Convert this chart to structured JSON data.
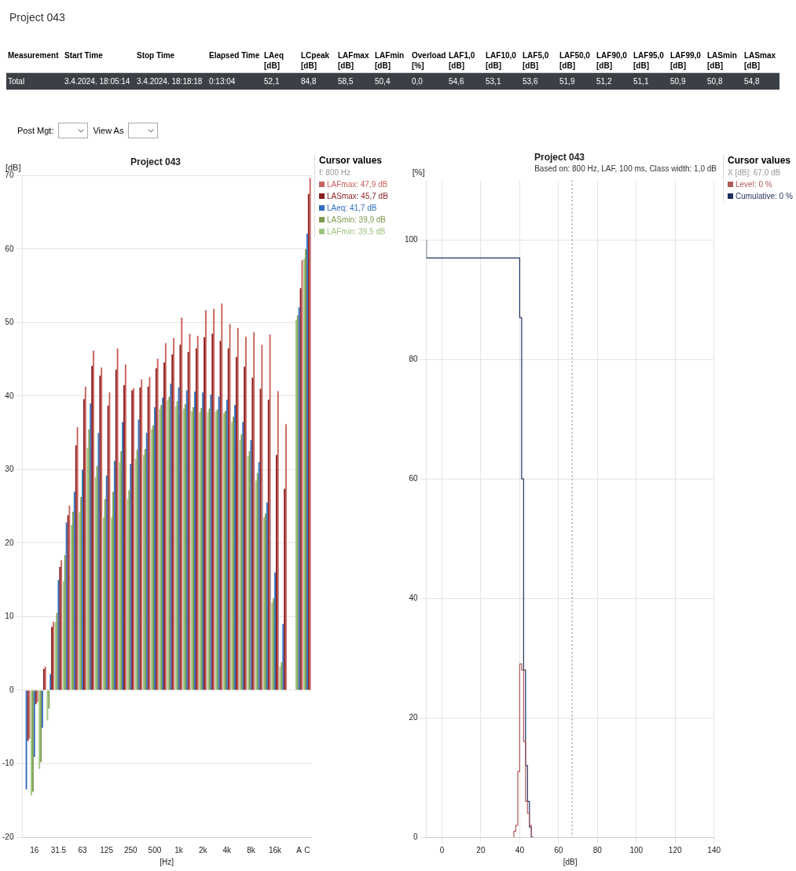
{
  "chart_data": [
    {
      "type": "other",
      "title": "Project 043",
      "annotations": [
        "Measurement",
        "Start Time",
        "Stop Time",
        "Elapsed Time",
        "LAeq [dB]",
        "LCpeak [dB]",
        "LAFmax [dB]",
        "LAFmin [dB]",
        "Overload [%]",
        "LAF1,0 [dB]",
        "LAF10,0 [dB]",
        "LAF5,0 [dB]",
        "LAF50,0 [dB]",
        "LAF90,0 [dB]",
        "LAF95,0 [dB]",
        "LAF99,0 [dB]",
        "LASmin [dB]",
        "LASmax [dB]",
        "Total",
        "3.4.2024. 18:05:14",
        "3.4.2024. 18:18:18",
        "0:13:04",
        "52,1",
        "84,8",
        "58,5",
        "50,4",
        "0,0",
        "54,6",
        "53,1",
        "53,6",
        "51,9",
        "51,2",
        "51,1",
        "50,9",
        "50,8",
        "54,8",
        "Post Mgt:",
        "View As"
      ]
    },
    {
      "type": "bar",
      "title": "Project 043",
      "xlabel": "[Hz]",
      "ylabel": "[dB]",
      "legend_title": "Cursor values",
      "annotations": [
        "f: 800 Hz"
      ],
      "categories": [
        null,
        "16",
        null,
        null,
        "31.5",
        null,
        null,
        "63",
        null,
        null,
        "125",
        null,
        null,
        "250",
        null,
        null,
        "500",
        null,
        null,
        "1k",
        null,
        null,
        "2k",
        null,
        null,
        "4k",
        null,
        null,
        "8k",
        null,
        null,
        "16k",
        null,
        null,
        "A",
        "C"
      ],
      "series": [
        {
          "name": "LAFmax: 47,9 dB",
          "color": "#c8615c",
          "values": [
            -6.6,
            -1.6,
            3.2,
            9.3,
            17.7,
            25.1,
            35.8,
            41.3,
            46.2,
            43.9,
            40.5,
            46.5,
            44.3,
            41.1,
            42.3,
            42.6,
            45.1,
            47.2,
            47.9,
            50.7,
            48.5,
            48.2,
            51.7,
            51.9,
            52.6,
            49.8,
            49.3,
            48.1,
            48.7,
            47.0,
            48.4,
            40.7,
            36.2,
            null,
            58.5,
            69.7
          ]
        },
        {
          "name": "LASmax: 45,7 dB",
          "color": "#8b1e1e",
          "values": [
            -6.9,
            -1.9,
            2.9,
            8.6,
            16.8,
            23.8,
            33.3,
            39.6,
            44.1,
            42.8,
            38.7,
            43.6,
            41.5,
            40.8,
            41.2,
            41.3,
            43.8,
            44.6,
            45.7,
            47.0,
            46.0,
            46.5,
            48.0,
            48.5,
            47.5,
            46.5,
            45.3,
            44.0,
            42.5,
            41.0,
            39.5,
            32.0,
            27.4,
            null,
            54.7,
            67.5
          ]
        },
        {
          "name": "LAeq: 41,7 dB",
          "color": "#2f6fbf",
          "values": [
            -13.5,
            -9.1,
            -5.1,
            2.2,
            15.0,
            22.8,
            27.0,
            30.0,
            39.0,
            35.0,
            29.2,
            31.2,
            36.5,
            30.8,
            36.8,
            35.0,
            38.5,
            39.8,
            41.7,
            41.2,
            40.8,
            40.6,
            40.5,
            40.2,
            39.9,
            39.5,
            38.8,
            36.5,
            34.0,
            31.0,
            25.5,
            16.0,
            9.0,
            null,
            52.1,
            62.1
          ]
        },
        {
          "name": "LASmin: 39,9 dB",
          "color": "#7d9a4f",
          "values": [
            null,
            -13.8,
            -9.8,
            -2.5,
            10.5,
            18.4,
            24.3,
            26.3,
            35.5,
            30.5,
            26.0,
            27.0,
            32.5,
            27.2,
            32.7,
            32.8,
            36.0,
            38.8,
            39.9,
            39.3,
            38.9,
            38.5,
            38.4,
            38.3,
            38.2,
            38.0,
            37.2,
            34.8,
            32.5,
            29.5,
            24.0,
            12.5,
            3.8,
            null,
            51.0,
            60.0
          ]
        },
        {
          "name": "LAFmin: 39,5 dB",
          "color": "#9ec47e",
          "values": [
            null,
            -14.3,
            -10.7,
            -4.1,
            9.3,
            14.8,
            22.5,
            24.2,
            33.0,
            29.0,
            23.5,
            23.5,
            31.0,
            26.0,
            31.5,
            32.0,
            35.5,
            38.2,
            39.5,
            38.6,
            38.3,
            38.0,
            37.8,
            37.8,
            37.9,
            37.7,
            36.5,
            34.0,
            31.8,
            28.5,
            23.5,
            11.9,
            3.2,
            null,
            50.4,
            58.7
          ]
        }
      ],
      "ylim": [
        -20,
        70
      ],
      "yticks": [
        -20,
        -10,
        0,
        10,
        20,
        30,
        40,
        50,
        60,
        70
      ],
      "grid": "y",
      "legend": "right"
    },
    {
      "type": "line",
      "title": "Project 043",
      "subtitle": "Based on: 800 Hz, LAF, 100 ms, Class width: 1,0 dB",
      "xlabel": "[dB]",
      "ylabel": "[%]",
      "legend_title": "Cursor values",
      "annotations": [
        "X [dB]: 67,0 dB"
      ],
      "series": [
        {
          "name": "Level: 0 %",
          "type": "step",
          "color": "#b05a5a",
          "x": [
            37,
            38,
            39,
            40,
            41,
            42,
            43,
            44,
            45,
            46,
            47
          ],
          "values": [
            0,
            1,
            2,
            11,
            29,
            28,
            16,
            6,
            4,
            2,
            0
          ]
        },
        {
          "name": "Cumulative: 0 %",
          "type": "step",
          "color": "#1f2f5f",
          "x": [
            -8,
            40,
            41,
            42,
            43,
            44,
            45,
            46,
            47
          ],
          "values": [
            100,
            97,
            87,
            60,
            28,
            12,
            6,
            1.7,
            0
          ]
        }
      ],
      "xlim": [
        -8,
        140
      ],
      "xticks": [
        0,
        20,
        40,
        60,
        80,
        100,
        120,
        140
      ],
      "ylim": [
        0,
        110
      ],
      "yticks": [
        0,
        20,
        40,
        60,
        80,
        100
      ],
      "grid": true,
      "legend": "right",
      "marker": "none",
      "ref_lines": [
        {
          "axis": "x",
          "value": 67,
          "color": "#777777",
          "line_style": "dotted"
        }
      ]
    }
  ]
}
